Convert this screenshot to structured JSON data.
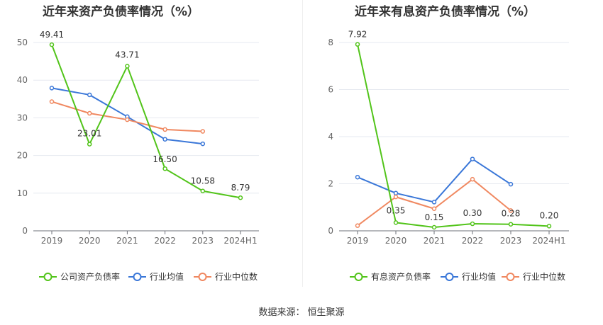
{
  "source": {
    "label": "数据来源：",
    "value": "恒生聚源"
  },
  "chart_data": [
    {
      "type": "line",
      "title": "近年来资产负债率情况（%）",
      "categories": [
        "2019",
        "2020",
        "2021",
        "2022",
        "2023",
        "2024H1"
      ],
      "ylim": [
        0,
        50
      ],
      "yticks": [
        0,
        10,
        20,
        30,
        40,
        50
      ],
      "grid": true,
      "legend_position": "bottom",
      "series": [
        {
          "name": "公司资产负债率",
          "color": "#52c41a",
          "values": [
            49.41,
            23.01,
            43.71,
            16.5,
            10.58,
            8.79
          ],
          "labels": [
            "49.41",
            "23.01",
            "43.71",
            "16.50",
            "10.58",
            "8.79"
          ]
        },
        {
          "name": "行业均值",
          "color": "#3a77d8",
          "values": [
            37.9,
            36.1,
            30.3,
            24.3,
            23.1,
            null
          ]
        },
        {
          "name": "行业中位数",
          "color": "#f08860",
          "values": [
            34.3,
            31.2,
            29.5,
            26.9,
            26.4,
            null
          ]
        }
      ]
    },
    {
      "type": "line",
      "title": "近年来有息资产负债率情况（%）",
      "categories": [
        "2019",
        "2020",
        "2021",
        "2022",
        "2023",
        "2024H1"
      ],
      "ylim": [
        0,
        8
      ],
      "yticks": [
        0,
        2,
        4,
        6,
        8
      ],
      "grid": true,
      "legend_position": "bottom",
      "series": [
        {
          "name": "有息资产负债率",
          "color": "#52c41a",
          "values": [
            7.92,
            0.35,
            0.15,
            0.3,
            0.28,
            0.2
          ],
          "labels": [
            "7.92",
            "0.35",
            "0.15",
            "0.30",
            "0.28",
            "0.20"
          ]
        },
        {
          "name": "行业均值",
          "color": "#3a77d8",
          "values": [
            2.28,
            1.6,
            1.22,
            3.05,
            1.98,
            null
          ]
        },
        {
          "name": "行业中位数",
          "color": "#f08860",
          "values": [
            0.22,
            1.44,
            0.94,
            2.19,
            0.86,
            null
          ]
        }
      ]
    }
  ]
}
